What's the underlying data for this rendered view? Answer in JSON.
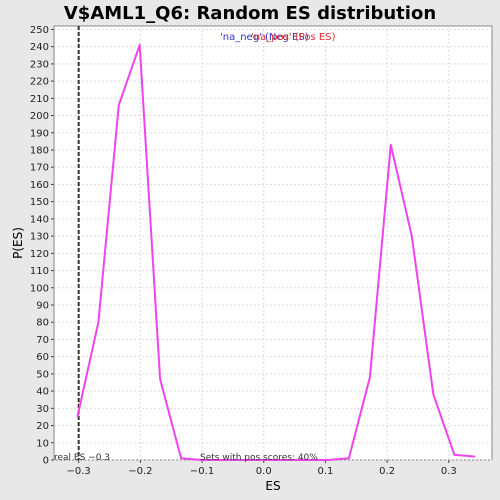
{
  "chart_data": {
    "type": "line",
    "title": "V$AML1_Q6: Random ES distribution",
    "xlabel": "ES",
    "ylabel": "P(ES)",
    "xlim": [
      -0.34,
      0.37
    ],
    "ylim": [
      0,
      252
    ],
    "x_ticks": [
      -0.3,
      -0.2,
      -0.1,
      0.0,
      0.1,
      0.2,
      0.3
    ],
    "x_tick_labels": [
      "−0.3",
      "−0.2",
      "−0.1",
      "0.0",
      "0.1",
      "0.2",
      "0.3"
    ],
    "y_ticks": [
      0,
      10,
      20,
      30,
      40,
      50,
      60,
      70,
      80,
      90,
      100,
      110,
      120,
      130,
      140,
      150,
      160,
      170,
      180,
      190,
      200,
      210,
      220,
      230,
      240,
      250
    ],
    "grid": true,
    "series": [
      {
        "name": "'na_neg' (Neg ES)",
        "color": "#ee44ee",
        "x": [
          -0.302,
          -0.268,
          -0.235,
          -0.201,
          -0.168,
          -0.134,
          -0.1,
          -0.066,
          -0.032,
          0.002,
          0.036,
          0.07,
          0.104,
          0.138,
          0.172,
          0.206,
          0.24,
          0.275,
          0.309,
          0.343
        ],
        "y": [
          25,
          80,
          206,
          241,
          47,
          1,
          0,
          0,
          0,
          0,
          0,
          0,
          0,
          1,
          48,
          183,
          130,
          38,
          3,
          2
        ]
      }
    ],
    "legend": [
      {
        "label": "'na_neg' (Neg ES)",
        "color": "#3333cc"
      },
      {
        "label": "'na_pos' (Pos ES)",
        "color": "#dd3333"
      }
    ],
    "real_es": {
      "x": -0.3,
      "label": "real ES −0.3"
    },
    "annotation": "Sets with pos scores: 40%"
  }
}
